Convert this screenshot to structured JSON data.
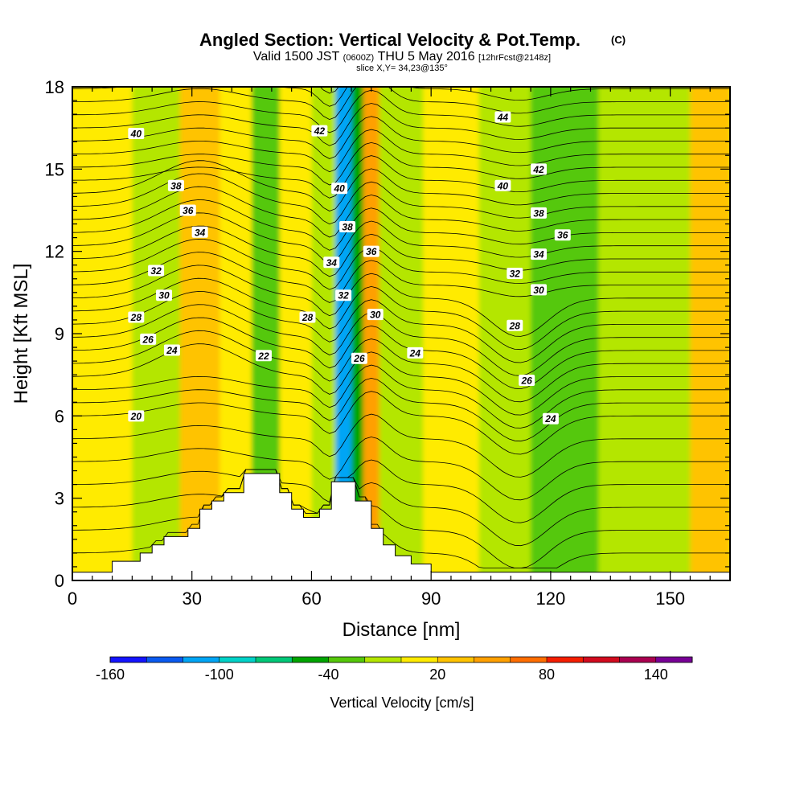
{
  "chart_data": {
    "type": "heatmap",
    "title": "Angled Section: Vertical Velocity & Pot.Temp.",
    "title_unit": "(C)",
    "subtitle": {
      "part1": "Valid 1500 JST",
      "part2": "(0600Z)",
      "part3": "THU 5 May 2016",
      "part4": "[12hrFcst@2148z]"
    },
    "slice_text": "slice X,Y= 34,23@135°",
    "xlabel": "Distance [nm]",
    "ylabel": "Height [Kft MSL]",
    "xlim": [
      0,
      165
    ],
    "ylim": [
      0,
      18
    ],
    "x_ticks": [
      0,
      30,
      60,
      90,
      120,
      150
    ],
    "y_ticks": [
      0,
      3,
      6,
      9,
      12,
      15,
      18
    ],
    "colorbar": {
      "label": "Vertical Velocity [cm/s]",
      "min": -160,
      "max": 160,
      "step": 20,
      "tick_labels": [
        -160,
        -100,
        -40,
        20,
        80,
        140
      ],
      "colors": [
        "#1414ff",
        "#0a5af0",
        "#00a5f5",
        "#00d2c8",
        "#00c878",
        "#00a500",
        "#55c80a",
        "#b4e600",
        "#ffeb00",
        "#ffc300",
        "#ffa000",
        "#ff6e00",
        "#f51e00",
        "#d20a1e",
        "#aa0050",
        "#780096"
      ]
    },
    "velocity_bands": [
      {
        "x_start": 0,
        "x_end": 15,
        "value": 5
      },
      {
        "x_start": 15,
        "x_end": 27,
        "value": -10
      },
      {
        "x_start": 27,
        "x_end": 37,
        "value": 25
      },
      {
        "x_start": 37,
        "x_end": 45,
        "value": 5
      },
      {
        "x_start": 45,
        "x_end": 52,
        "value": -30
      },
      {
        "x_start": 52,
        "x_end": 60,
        "value": 5
      },
      {
        "x_start": 60,
        "x_end": 66,
        "value": -20
      },
      {
        "x_start": 66,
        "x_end": 70,
        "value": -110
      },
      {
        "x_start": 70,
        "x_end": 73,
        "value": -50
      },
      {
        "x_start": 73,
        "x_end": 77,
        "value": 55
      },
      {
        "x_start": 77,
        "x_end": 88,
        "value": -5
      },
      {
        "x_start": 88,
        "x_end": 102,
        "value": 5
      },
      {
        "x_start": 102,
        "x_end": 115,
        "value": -10
      },
      {
        "x_start": 115,
        "x_end": 132,
        "value": -25
      },
      {
        "x_start": 132,
        "x_end": 148,
        "value": -15
      },
      {
        "x_start": 148,
        "x_end": 155,
        "value": -5
      },
      {
        "x_start": 155,
        "x_end": 165,
        "value": 25
      }
    ],
    "terrain": [
      [
        0,
        0.3
      ],
      [
        10,
        0.3
      ],
      [
        10,
        0.7
      ],
      [
        17,
        0.7
      ],
      [
        17,
        1.0
      ],
      [
        20,
        1.0
      ],
      [
        20,
        1.3
      ],
      [
        23,
        1.3
      ],
      [
        23,
        1.6
      ],
      [
        29,
        1.6
      ],
      [
        29,
        1.9
      ],
      [
        32,
        1.9
      ],
      [
        32,
        2.6
      ],
      [
        35,
        2.6
      ],
      [
        35,
        2.9
      ],
      [
        38,
        2.9
      ],
      [
        38,
        3.2
      ],
      [
        43,
        3.2
      ],
      [
        43,
        3.9
      ],
      [
        52,
        3.9
      ],
      [
        52,
        3.2
      ],
      [
        55,
        3.2
      ],
      [
        55,
        2.6
      ],
      [
        58,
        2.6
      ],
      [
        58,
        2.3
      ],
      [
        62,
        2.3
      ],
      [
        62,
        2.6
      ],
      [
        65,
        2.6
      ],
      [
        65,
        3.6
      ],
      [
        71,
        3.6
      ],
      [
        71,
        2.9
      ],
      [
        75,
        2.9
      ],
      [
        75,
        1.9
      ],
      [
        78,
        1.9
      ],
      [
        78,
        1.3
      ],
      [
        81,
        1.3
      ],
      [
        81,
        0.9
      ],
      [
        85,
        0.9
      ],
      [
        85,
        0.6
      ],
      [
        90,
        0.6
      ],
      [
        90,
        0.3
      ],
      [
        165,
        0.3
      ]
    ],
    "contour_labels": [
      {
        "text": "40",
        "x": 16,
        "y": 16.3
      },
      {
        "text": "42",
        "x": 62,
        "y": 16.4
      },
      {
        "text": "44",
        "x": 108,
        "y": 16.9
      },
      {
        "text": "38",
        "x": 26,
        "y": 14.4
      },
      {
        "text": "40",
        "x": 67,
        "y": 14.3
      },
      {
        "text": "42",
        "x": 117,
        "y": 15.0
      },
      {
        "text": "36",
        "x": 29,
        "y": 13.5
      },
      {
        "text": "40",
        "x": 108,
        "y": 14.4
      },
      {
        "text": "38",
        "x": 69,
        "y": 12.9
      },
      {
        "text": "38",
        "x": 117,
        "y": 13.4
      },
      {
        "text": "34",
        "x": 32,
        "y": 12.7
      },
      {
        "text": "36",
        "x": 123,
        "y": 12.6
      },
      {
        "text": "36",
        "x": 75,
        "y": 12.0
      },
      {
        "text": "34",
        "x": 65,
        "y": 11.6
      },
      {
        "text": "34",
        "x": 117,
        "y": 11.9
      },
      {
        "text": "32",
        "x": 21,
        "y": 11.3
      },
      {
        "text": "32",
        "x": 111,
        "y": 11.2
      },
      {
        "text": "30",
        "x": 23,
        "y": 10.4
      },
      {
        "text": "30",
        "x": 117,
        "y": 10.6
      },
      {
        "text": "32",
        "x": 68,
        "y": 10.4
      },
      {
        "text": "28",
        "x": 16,
        "y": 9.6
      },
      {
        "text": "28",
        "x": 59,
        "y": 9.6
      },
      {
        "text": "30",
        "x": 76,
        "y": 9.7
      },
      {
        "text": "28",
        "x": 111,
        "y": 9.3
      },
      {
        "text": "26",
        "x": 19,
        "y": 8.8
      },
      {
        "text": "24",
        "x": 25,
        "y": 8.4
      },
      {
        "text": "22",
        "x": 48,
        "y": 8.2
      },
      {
        "text": "26",
        "x": 72,
        "y": 8.1
      },
      {
        "text": "24",
        "x": 86,
        "y": 8.3
      },
      {
        "text": "26",
        "x": 114,
        "y": 7.3
      },
      {
        "text": "20",
        "x": 16,
        "y": 6.0
      },
      {
        "text": "24",
        "x": 120,
        "y": 5.9
      }
    ]
  }
}
